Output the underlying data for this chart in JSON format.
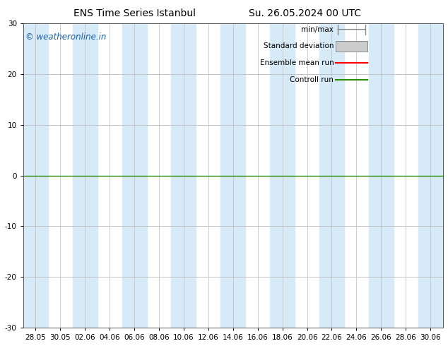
{
  "title_left": "ENS Time Series Istanbul",
  "title_right": "Su. 26.05.2024 00 UTC",
  "ylim": [
    -30,
    30
  ],
  "yticks": [
    -30,
    -20,
    -10,
    0,
    10,
    20,
    30
  ],
  "xtick_labels": [
    "28.05",
    "30.05",
    "02.06",
    "04.06",
    "06.06",
    "08.06",
    "10.06",
    "12.06",
    "14.06",
    "16.06",
    "18.06",
    "20.06",
    "22.06",
    "24.06",
    "26.06",
    "28.06",
    "30.06"
  ],
  "background_color": "#ffffff",
  "plot_bg_color": "#ffffff",
  "band_color": "#d6eaf8",
  "zero_line_color": "#2e8b00",
  "grid_color": "#bbbbbb",
  "watermark": "© weatheronline.in",
  "watermark_color": "#1a5fa8",
  "legend_items": [
    "min/max",
    "Standard deviation",
    "Ensemble mean run",
    "Controll run"
  ],
  "legend_colors_line": [
    "#888888",
    "#bbbbbb",
    "#ff0000",
    "#2e8b00"
  ],
  "title_fontsize": 10,
  "tick_fontsize": 7.5,
  "watermark_fontsize": 8.5,
  "legend_fontsize": 7.5
}
